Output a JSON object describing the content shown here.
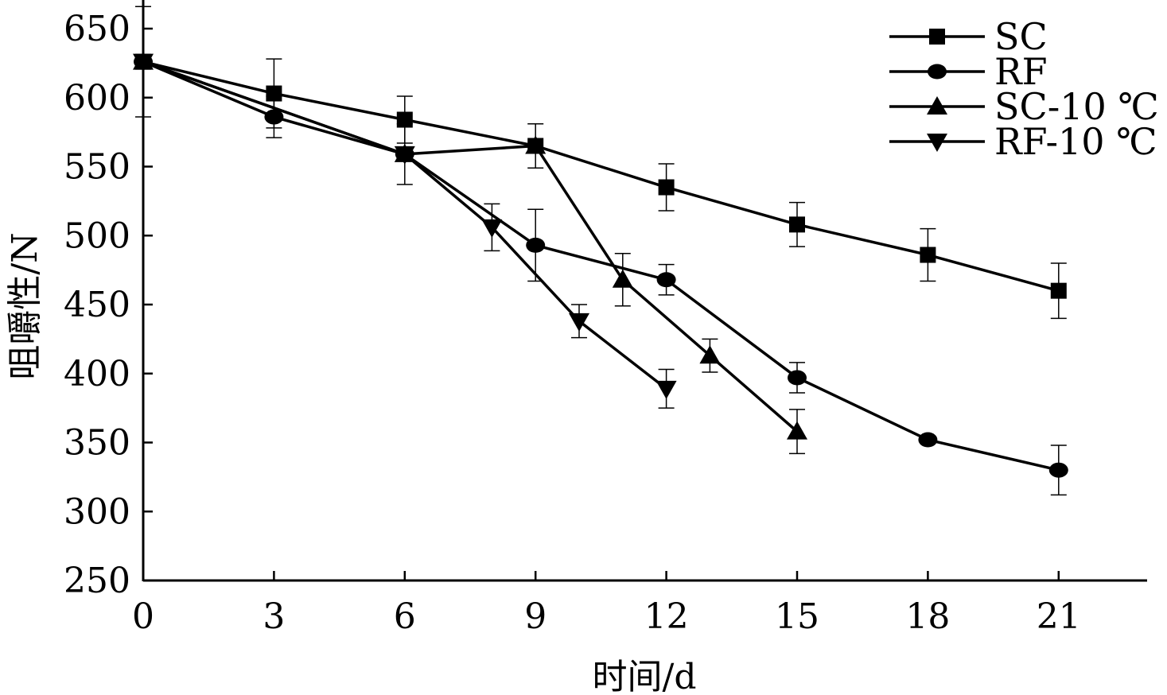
{
  "chart_data": {
    "type": "line",
    "xlabel": "时间/d",
    "ylabel": "咀嚼性/N",
    "xlim": [
      0,
      23
    ],
    "ylim": [
      250,
      650
    ],
    "xticks": [
      0,
      3,
      6,
      9,
      12,
      15,
      18,
      21
    ],
    "yticks": [
      250,
      300,
      350,
      400,
      450,
      500,
      550,
      600,
      650
    ],
    "grid": false,
    "legend": "top-right",
    "series": [
      {
        "name": "SC",
        "marker": "square",
        "x": [
          0,
          3,
          6,
          9,
          12,
          15,
          18,
          21
        ],
        "y": [
          626,
          603,
          584,
          565,
          535,
          508,
          486,
          460
        ],
        "err": [
          40,
          25,
          17,
          16,
          17,
          16,
          19,
          20
        ]
      },
      {
        "name": "RF",
        "marker": "circle",
        "x": [
          0,
          3,
          6,
          9,
          12,
          15,
          18,
          21
        ],
        "y": [
          626,
          586,
          559,
          493,
          468,
          397,
          352,
          330
        ],
        "err": [
          0,
          15,
          22,
          26,
          11,
          11,
          0,
          18
        ]
      },
      {
        "name": "SC-10 ℃",
        "marker": "triangle-up",
        "x": [
          0,
          6,
          9,
          11,
          13,
          15
        ],
        "y": [
          626,
          559,
          565,
          468,
          413,
          358
        ],
        "err": [
          0,
          0,
          0,
          19,
          12,
          16
        ]
      },
      {
        "name": "RF-10 ℃",
        "marker": "triangle-down",
        "x": [
          0,
          6,
          8,
          10,
          12
        ],
        "y": [
          626,
          559,
          506,
          438,
          389
        ],
        "err": [
          0,
          0,
          17,
          12,
          14
        ]
      }
    ]
  }
}
